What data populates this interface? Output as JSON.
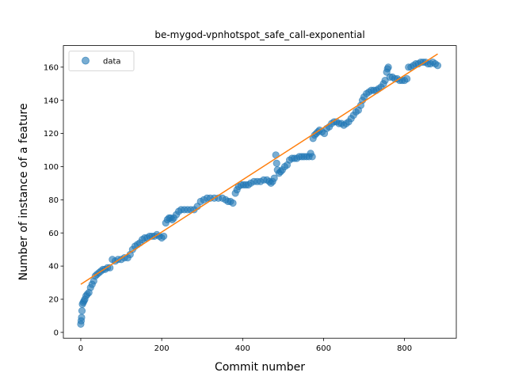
{
  "chart_data": {
    "type": "scatter",
    "title": "be-mygod-vpnhotspot_safe_call-exponential",
    "xlabel": "Commit number",
    "ylabel": "Number of instance of a feature",
    "xlim": [
      -43,
      928
    ],
    "ylim": [
      -3.5,
      173
    ],
    "xticks": [
      0,
      200,
      400,
      600,
      800
    ],
    "yticks": [
      0,
      20,
      40,
      60,
      80,
      100,
      120,
      140,
      160
    ],
    "legend": {
      "position": "top-left",
      "entries": [
        "data"
      ]
    },
    "colors": {
      "data": "#1f77b4",
      "fit": "#ff7f0e"
    },
    "series": [
      {
        "name": "data",
        "marker": "circle",
        "points": [
          [
            0,
            5
          ],
          [
            1,
            7
          ],
          [
            2,
            9
          ],
          [
            3,
            13
          ],
          [
            4,
            17
          ],
          [
            6,
            18
          ],
          [
            8,
            19
          ],
          [
            10,
            20
          ],
          [
            13,
            22
          ],
          [
            16,
            23
          ],
          [
            20,
            24
          ],
          [
            24,
            27
          ],
          [
            28,
            29
          ],
          [
            32,
            31
          ],
          [
            36,
            34
          ],
          [
            40,
            35
          ],
          [
            45,
            36
          ],
          [
            50,
            37
          ],
          [
            55,
            38
          ],
          [
            60,
            38
          ],
          [
            66,
            39
          ],
          [
            72,
            39
          ],
          [
            78,
            44
          ],
          [
            85,
            43
          ],
          [
            92,
            44
          ],
          [
            100,
            44
          ],
          [
            108,
            45
          ],
          [
            116,
            45
          ],
          [
            122,
            47
          ],
          [
            128,
            50
          ],
          [
            134,
            52
          ],
          [
            140,
            53
          ],
          [
            146,
            54
          ],
          [
            152,
            56
          ],
          [
            158,
            57
          ],
          [
            164,
            57
          ],
          [
            170,
            58
          ],
          [
            176,
            58
          ],
          [
            182,
            58
          ],
          [
            188,
            59
          ],
          [
            194,
            58
          ],
          [
            200,
            57
          ],
          [
            205,
            58
          ],
          [
            210,
            66
          ],
          [
            214,
            68
          ],
          [
            218,
            69
          ],
          [
            222,
            69
          ],
          [
            226,
            68
          ],
          [
            230,
            69
          ],
          [
            236,
            71
          ],
          [
            242,
            73
          ],
          [
            248,
            74
          ],
          [
            256,
            74
          ],
          [
            264,
            74
          ],
          [
            272,
            74
          ],
          [
            280,
            74
          ],
          [
            288,
            76
          ],
          [
            296,
            79
          ],
          [
            304,
            80
          ],
          [
            312,
            81
          ],
          [
            320,
            81
          ],
          [
            330,
            81
          ],
          [
            340,
            81
          ],
          [
            350,
            81
          ],
          [
            358,
            80
          ],
          [
            364,
            79
          ],
          [
            370,
            79
          ],
          [
            376,
            78
          ],
          [
            382,
            84
          ],
          [
            386,
            86
          ],
          [
            390,
            88
          ],
          [
            396,
            89
          ],
          [
            402,
            89
          ],
          [
            408,
            89
          ],
          [
            414,
            89
          ],
          [
            420,
            90
          ],
          [
            428,
            91
          ],
          [
            436,
            91
          ],
          [
            444,
            91
          ],
          [
            452,
            92
          ],
          [
            460,
            92
          ],
          [
            466,
            91
          ],
          [
            470,
            90
          ],
          [
            474,
            91
          ],
          [
            478,
            93
          ],
          [
            482,
            107
          ],
          [
            484,
            102
          ],
          [
            486,
            98
          ],
          [
            490,
            96
          ],
          [
            494,
            97
          ],
          [
            498,
            98
          ],
          [
            504,
            100
          ],
          [
            510,
            101
          ],
          [
            516,
            104
          ],
          [
            522,
            105
          ],
          [
            528,
            105
          ],
          [
            534,
            105
          ],
          [
            540,
            106
          ],
          [
            546,
            106
          ],
          [
            552,
            106
          ],
          [
            558,
            106
          ],
          [
            564,
            106
          ],
          [
            568,
            108
          ],
          [
            572,
            106
          ],
          [
            574,
            117
          ],
          [
            578,
            119
          ],
          [
            582,
            120
          ],
          [
            586,
            121
          ],
          [
            590,
            122
          ],
          [
            596,
            121
          ],
          [
            602,
            120
          ],
          [
            608,
            123
          ],
          [
            614,
            124
          ],
          [
            620,
            126
          ],
          [
            626,
            127
          ],
          [
            632,
            127
          ],
          [
            638,
            126
          ],
          [
            644,
            126
          ],
          [
            650,
            125
          ],
          [
            656,
            126
          ],
          [
            662,
            127
          ],
          [
            668,
            129
          ],
          [
            674,
            131
          ],
          [
            680,
            133
          ],
          [
            686,
            134
          ],
          [
            692,
            137
          ],
          [
            696,
            140
          ],
          [
            700,
            142
          ],
          [
            706,
            144
          ],
          [
            712,
            145
          ],
          [
            718,
            146
          ],
          [
            724,
            146
          ],
          [
            730,
            146
          ],
          [
            736,
            147
          ],
          [
            742,
            148
          ],
          [
            748,
            150
          ],
          [
            752,
            152
          ],
          [
            756,
            157
          ],
          [
            758,
            159
          ],
          [
            760,
            160
          ],
          [
            764,
            154
          ],
          [
            770,
            154
          ],
          [
            776,
            153
          ],
          [
            782,
            153
          ],
          [
            788,
            152
          ],
          [
            794,
            152
          ],
          [
            800,
            152
          ],
          [
            806,
            153
          ],
          [
            810,
            160
          ],
          [
            816,
            160
          ],
          [
            822,
            161
          ],
          [
            828,
            162
          ],
          [
            834,
            162
          ],
          [
            840,
            163
          ],
          [
            846,
            163
          ],
          [
            852,
            163
          ],
          [
            858,
            162
          ],
          [
            864,
            162
          ],
          [
            870,
            163
          ],
          [
            876,
            162
          ],
          [
            882,
            161
          ]
        ]
      },
      {
        "name": "fit",
        "type": "line",
        "points": [
          [
            0,
            29
          ],
          [
            882,
            168
          ]
        ]
      }
    ]
  }
}
